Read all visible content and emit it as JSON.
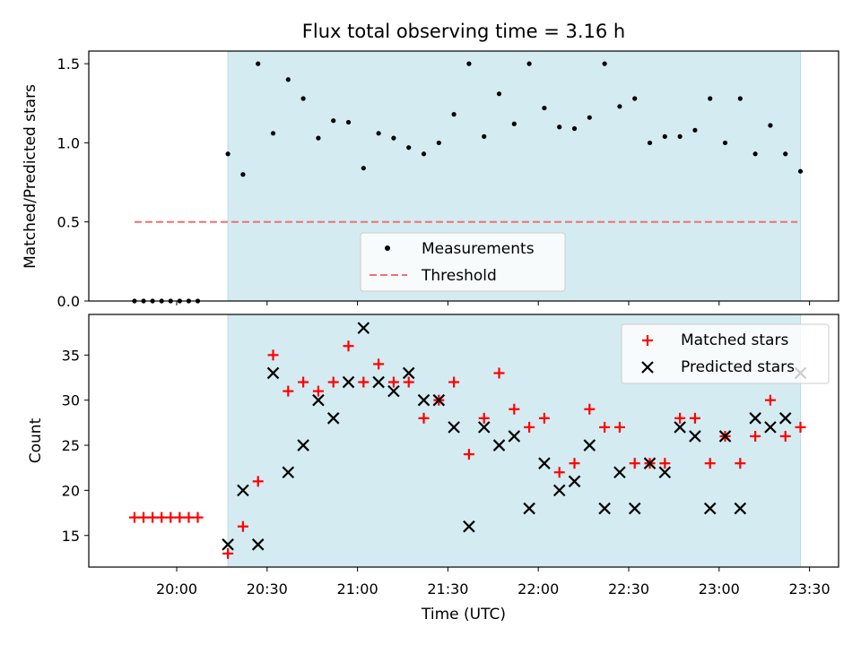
{
  "figure": {
    "title": "Flux total observing time = 3.16 h",
    "xlabel": "Time (UTC)",
    "xtick_labels": [
      "20:00",
      "20:30",
      "21:00",
      "21:30",
      "22:00",
      "22:30",
      "23:00",
      "23:30"
    ],
    "shade_color": "#d4ebf1",
    "shade_range": [
      "20:17",
      "23:27"
    ]
  },
  "chart_data": [
    {
      "type": "scatter",
      "ylabel": "Matched/Predicted stars",
      "ylim": [
        0,
        1.58
      ],
      "yticks": [
        "0.0",
        "0.5",
        "1.0",
        "1.5"
      ],
      "legend": {
        "placement": "lower-center",
        "measurements_label": "Measurements",
        "threshold_label": "Threshold"
      },
      "threshold": {
        "value": 0.5,
        "x_range": [
          "19:46",
          "23:26"
        ],
        "color": "#f07070"
      },
      "series": [
        {
          "name": "Measurements",
          "color": "#000000",
          "x": [
            "19:46",
            "19:49",
            "19:52",
            "19:55",
            "19:58",
            "20:01",
            "20:04",
            "20:07",
            "20:17",
            "20:22",
            "20:27",
            "20:32",
            "20:37",
            "20:42",
            "20:47",
            "20:52",
            "20:57",
            "21:02",
            "21:07",
            "21:12",
            "21:17",
            "21:22",
            "21:27",
            "21:32",
            "21:37",
            "21:42",
            "21:47",
            "21:52",
            "21:57",
            "22:02",
            "22:07",
            "22:12",
            "22:17",
            "22:22",
            "22:27",
            "22:32",
            "22:37",
            "22:42",
            "22:47",
            "22:52",
            "22:57",
            "23:02",
            "23:07",
            "23:12",
            "23:17",
            "23:22",
            "23:27"
          ],
          "y": [
            0,
            0,
            0,
            0,
            0,
            0,
            0,
            0,
            0.93,
            0.8,
            1.5,
            1.06,
            1.4,
            1.28,
            1.03,
            1.14,
            1.13,
            0.84,
            1.06,
            1.03,
            0.97,
            0.93,
            1.0,
            1.18,
            1.5,
            1.04,
            1.31,
            1.12,
            1.5,
            1.22,
            1.1,
            1.09,
            1.16,
            1.5,
            1.23,
            1.28,
            1.0,
            1.04,
            1.04,
            1.08,
            1.28,
            1.0,
            1.28,
            0.93,
            1.11,
            0.93,
            0.82
          ]
        }
      ]
    },
    {
      "type": "scatter",
      "ylabel": "Count",
      "ylim": [
        11.5,
        39.5
      ],
      "yticks": [
        "15",
        "20",
        "25",
        "30",
        "35"
      ],
      "legend": {
        "placement": "top-right",
        "matched_label": "Matched stars",
        "predicted_label": "Predicted stars"
      },
      "series": [
        {
          "name": "Matched stars",
          "marker": "+",
          "color": "#ff0000",
          "x": [
            "19:46",
            "19:49",
            "19:52",
            "19:55",
            "19:58",
            "20:01",
            "20:04",
            "20:07",
            "20:17",
            "20:22",
            "20:27",
            "20:32",
            "20:37",
            "20:42",
            "20:47",
            "20:52",
            "20:57",
            "21:02",
            "21:07",
            "21:12",
            "21:17",
            "21:22",
            "21:27",
            "21:32",
            "21:37",
            "21:42",
            "21:47",
            "21:52",
            "21:57",
            "22:02",
            "22:07",
            "22:12",
            "22:17",
            "22:22",
            "22:27",
            "22:32",
            "22:37",
            "22:42",
            "22:47",
            "22:52",
            "22:57",
            "23:02",
            "23:07",
            "23:12",
            "23:17",
            "23:22",
            "23:27"
          ],
          "y": [
            17,
            17,
            17,
            17,
            17,
            17,
            17,
            17,
            13,
            16,
            21,
            35,
            31,
            32,
            31,
            32,
            36,
            32,
            34,
            32,
            32,
            28,
            30,
            32,
            24,
            28,
            33,
            29,
            27,
            28,
            22,
            23,
            29,
            27,
            27,
            23,
            23,
            23,
            28,
            28,
            23,
            26,
            23,
            26,
            30,
            26,
            27
          ]
        },
        {
          "name": "Predicted stars",
          "marker": "x",
          "color": "#000000",
          "x": [
            "20:17",
            "20:22",
            "20:27",
            "20:32",
            "20:37",
            "20:42",
            "20:47",
            "20:52",
            "20:57",
            "21:02",
            "21:07",
            "21:12",
            "21:17",
            "21:22",
            "21:27",
            "21:32",
            "21:37",
            "21:42",
            "21:47",
            "21:52",
            "21:57",
            "22:02",
            "22:07",
            "22:12",
            "22:17",
            "22:22",
            "22:27",
            "22:32",
            "22:37",
            "22:42",
            "22:47",
            "22:52",
            "22:57",
            "23:02",
            "23:07",
            "23:12",
            "23:17",
            "23:22",
            "23:27"
          ],
          "y": [
            14,
            20,
            14,
            33,
            22,
            25,
            30,
            28,
            32,
            38,
            32,
            31,
            33,
            30,
            30,
            27,
            16,
            27,
            25,
            26,
            18,
            23,
            20,
            21,
            25,
            18,
            22,
            18,
            23,
            22,
            27,
            26,
            18,
            26,
            18,
            28,
            27,
            28,
            33
          ]
        }
      ]
    }
  ]
}
